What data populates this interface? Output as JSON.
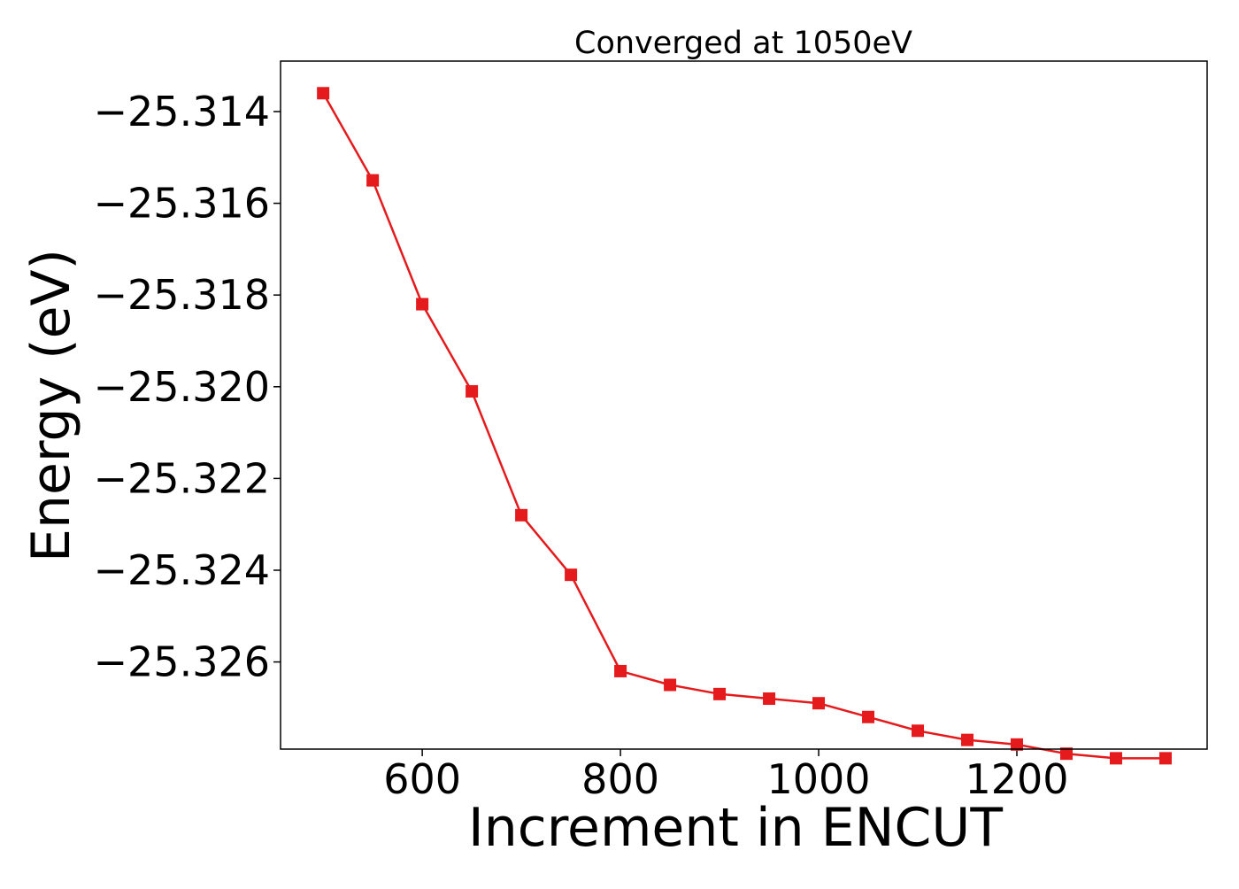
{
  "chart_data": {
    "type": "line",
    "title": "Converged at 1050eV",
    "xlabel": "Increment in ENCUT",
    "ylabel": "Energy (eV)",
    "xlim": [
      457,
      1392
    ],
    "ylim": [
      -25.3279,
      -25.3129
    ],
    "xticks": [
      600,
      800,
      1000,
      1200
    ],
    "yticks": [
      -25.314,
      -25.316,
      -25.318,
      -25.32,
      -25.322,
      -25.324,
      -25.326
    ],
    "ytick_labels": [
      "−25.314",
      "−25.316",
      "−25.318",
      "−25.320",
      "−25.322",
      "−25.324",
      "−25.326"
    ],
    "grid": false,
    "legend": "none",
    "marker": "square",
    "color": "#e41a1c",
    "series": [
      {
        "x": [
          500,
          550,
          600,
          650,
          700,
          750,
          800,
          850,
          900,
          950,
          1000,
          1050,
          1100,
          1150,
          1200,
          1250,
          1300,
          1350
        ],
        "y": [
          -25.3136,
          -25.3155,
          -25.3182,
          -25.3201,
          -25.3228,
          -25.3241,
          -25.3262,
          -25.3265,
          -25.3267,
          -25.3268,
          -25.3269,
          -25.3272,
          -25.3275,
          -25.3277,
          -25.3278,
          -25.328,
          -25.3281,
          -25.3281
        ]
      }
    ]
  }
}
